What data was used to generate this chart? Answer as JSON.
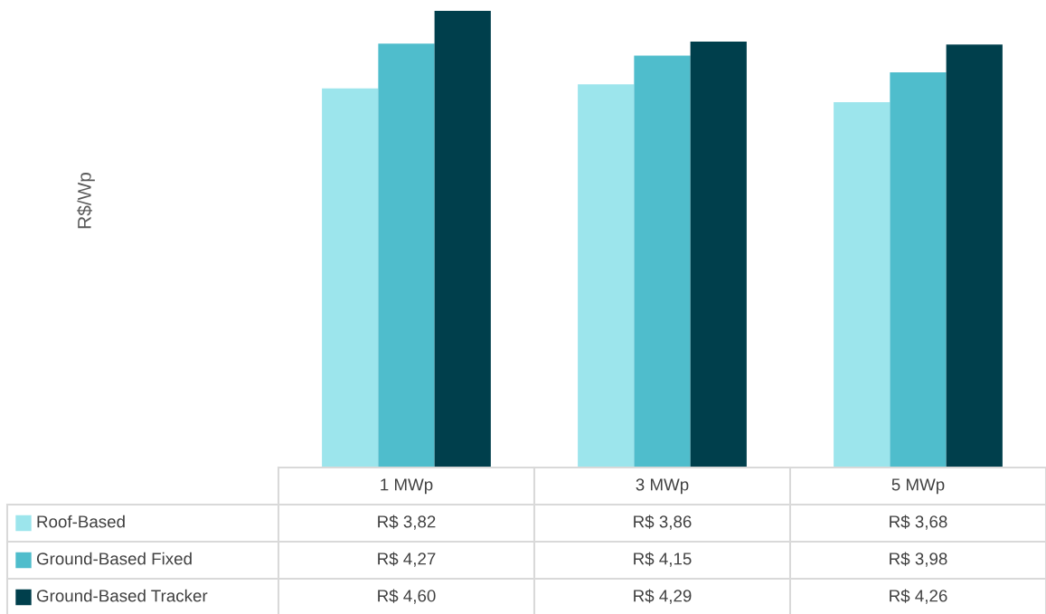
{
  "chart_data": {
    "type": "bar",
    "annotations": [
      "R$/Wp"
    ],
    "legend": "bottom left",
    "categories": [
      "1 MWp",
      "3 MWp",
      "5 MWp"
    ],
    "series": [
      {
        "name": "Roof-Based",
        "color": "#9ce5ec",
        "values": [
          3.82,
          3.86,
          3.68
        ],
        "value_labels": [
          "R$ 3,82",
          "R$ 3,86",
          "R$ 3,68"
        ]
      },
      {
        "name": "Ground-Based Fixed",
        "color": "#4fbdcc",
        "values": [
          4.27,
          4.15,
          3.98
        ],
        "value_labels": [
          "R$ 4,27",
          "R$ 4,15",
          "R$ 3,98"
        ]
      },
      {
        "name": "Ground-Based Tracker",
        "color": "#003f4c",
        "values": [
          4.6,
          4.29,
          4.26
        ],
        "value_labels": [
          "R$ 4,60",
          "R$ 4,29",
          "R$ 4,26"
        ]
      }
    ]
  }
}
